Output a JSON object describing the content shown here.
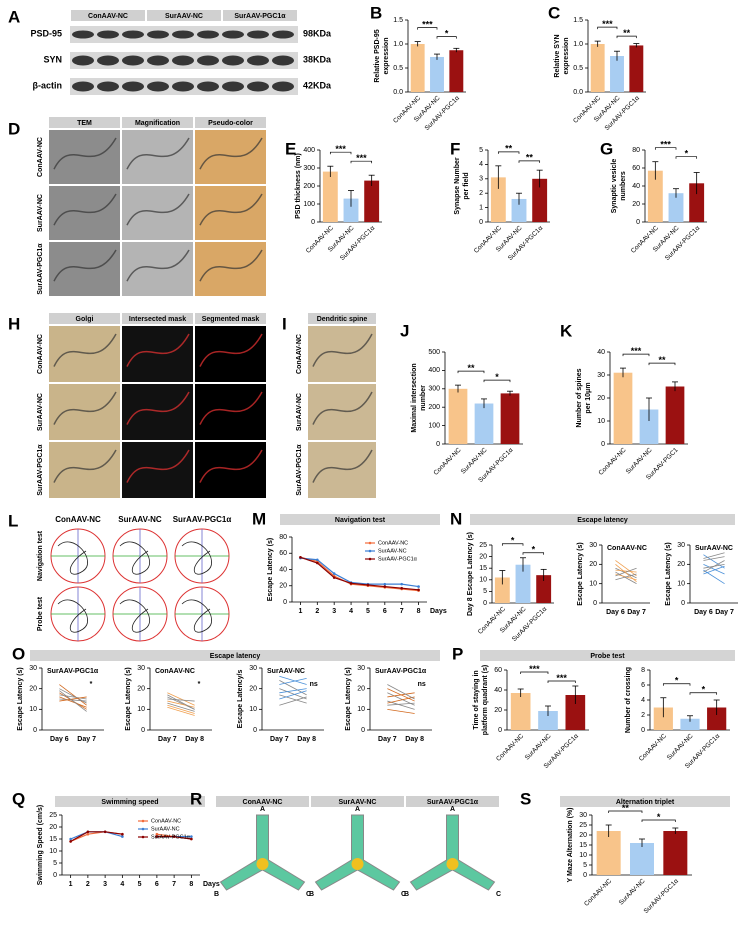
{
  "chart_data": [
    {
      "type": "bar",
      "panel": "B",
      "ylabel": [
        "Relative PSD-95",
        "expression"
      ],
      "categories": [
        "ConAAV-NC",
        "SurAAV-NC",
        "SurAAV-PGC1α"
      ],
      "values": [
        1.0,
        0.73,
        0.87
      ],
      "errors": [
        0.05,
        0.06,
        0.04
      ],
      "colors": [
        "#f8c48a",
        "#a8cdf2",
        "#9b1111"
      ],
      "ylim": [
        0,
        1.5
      ],
      "yticks": [
        {
          "value": 0,
          "label": "0.0"
        },
        0.5,
        {
          "value": 1,
          "label": "1.0"
        },
        1.5
      ],
      "annotations": [
        "***",
        "*"
      ]
    },
    {
      "type": "bar",
      "panel": "C",
      "ylabel": [
        "Relative SYN",
        "expression"
      ],
      "categories": [
        "ConAAV-NC",
        "SurAAV-NC",
        "SurAAV-PGC1α"
      ],
      "values": [
        1.0,
        0.75,
        0.97
      ],
      "errors": [
        0.06,
        0.1,
        0.04
      ],
      "colors": [
        "#f8c48a",
        "#a8cdf2",
        "#9b1111"
      ],
      "ylim": [
        0,
        1.5
      ],
      "yticks": [
        {
          "value": 0,
          "label": "0.0"
        },
        0.5,
        {
          "value": 1,
          "label": "1.0"
        },
        1.5
      ],
      "annotations": [
        "***",
        "**"
      ]
    },
    {
      "type": "bar",
      "panel": "E",
      "ylabel": [
        "PSD thickness (nm)"
      ],
      "categories": [
        "ConAAV-NC",
        "SurAAV-NC",
        "SurAAV-PGC1α"
      ],
      "values": [
        280,
        130,
        230
      ],
      "errors": [
        30,
        45,
        30
      ],
      "colors": [
        "#f8c48a",
        "#a8cdf2",
        "#9b1111"
      ],
      "ylim": [
        0,
        400
      ],
      "yticks": [
        0,
        100,
        200,
        300,
        400
      ],
      "annotations": [
        "***",
        "***"
      ]
    },
    {
      "type": "bar",
      "panel": "F",
      "ylabel": [
        "Synapse Number",
        "per field"
      ],
      "categories": [
        "ConAAV-NC",
        "SurAAV-NC",
        "SurAAV-PGC1α"
      ],
      "values": [
        3.1,
        1.6,
        3.0
      ],
      "errors": [
        0.8,
        0.4,
        0.6
      ],
      "colors": [
        "#f8c48a",
        "#a8cdf2",
        "#9b1111"
      ],
      "ylim": [
        0,
        5
      ],
      "yticks": [
        0,
        1,
        2,
        3,
        4,
        5
      ],
      "annotations": [
        "**",
        "**"
      ]
    },
    {
      "type": "bar",
      "panel": "G",
      "ylabel": [
        "Synaptic vesicle",
        "numbers"
      ],
      "categories": [
        "ConAAV-NC",
        "SurAAV-NC",
        "SurAAV-PGC1α"
      ],
      "values": [
        57,
        32,
        43
      ],
      "errors": [
        10,
        5,
        12
      ],
      "colors": [
        "#f8c48a",
        "#a8cdf2",
        "#9b1111"
      ],
      "ylim": [
        0,
        80
      ],
      "yticks": [
        0,
        20,
        40,
        60,
        80
      ],
      "annotations": [
        "***",
        "*"
      ]
    },
    {
      "type": "bar",
      "panel": "J",
      "ylabel": [
        "Maximal  intersection",
        "number"
      ],
      "categories": [
        "ConAAV-NC",
        "SurAAV-NC",
        "SurAAV-PGC1α"
      ],
      "values": [
        300,
        220,
        275
      ],
      "errors": [
        20,
        25,
        12
      ],
      "colors": [
        "#f8c48a",
        "#a8cdf2",
        "#9b1111"
      ],
      "ylim": [
        0,
        500
      ],
      "yticks": [
        0,
        100,
        200,
        300,
        400,
        500
      ],
      "annotations": [
        "**",
        "*"
      ]
    },
    {
      "type": "bar",
      "panel": "K",
      "ylabel": [
        "Number of spines",
        "per 10μm"
      ],
      "categories": [
        "ConAAV-NC",
        "SurAAV-NC",
        "SurAAV-PGC1"
      ],
      "values": [
        31,
        15,
        25
      ],
      "errors": [
        2,
        5,
        2
      ],
      "colors": [
        "#f8c48a",
        "#a8cdf2",
        "#9b1111"
      ],
      "ylim": [
        0,
        40
      ],
      "yticks": [
        0,
        10,
        20,
        30,
        40
      ],
      "annotations": [
        "***",
        "**"
      ]
    },
    {
      "type": "line",
      "panel": "M",
      "header": "Navigation test",
      "ylabel": [
        "Escape Latency (s)"
      ],
      "xlabel": "Days",
      "x": [
        1,
        2,
        3,
        4,
        5,
        6,
        7,
        8
      ],
      "xlim": [
        0.5,
        8.5
      ],
      "xticks": [
        1,
        2,
        3,
        4,
        5,
        6,
        7,
        8
      ],
      "ylim": [
        0,
        80
      ],
      "yticks": [
        0,
        20,
        40,
        60,
        80
      ],
      "series": [
        {
          "name": "ConAAV-NC",
          "color": "#f26b3a",
          "values": [
            55,
            50,
            32,
            22,
            20,
            18,
            16,
            14
          ]
        },
        {
          "name": "SurAAV-NC",
          "color": "#3b7fd4",
          "values": [
            54,
            52,
            35,
            24,
            22,
            22,
            22,
            19
          ]
        },
        {
          "name": "SurAAV-PGC1α",
          "color": "#8b0000",
          "values": [
            55,
            48,
            30,
            23,
            21,
            19,
            17,
            15
          ]
        }
      ]
    },
    {
      "type": "bar",
      "panel": "N",
      "header": "Escape latency",
      "ylabel": [
        "Day 8 Escape Latency (s)"
      ],
      "categories": [
        "ConAAV-NC",
        "SurAAV-NC",
        "SurAAV-PGC1α"
      ],
      "values": [
        11,
        16.5,
        12
      ],
      "errors": [
        3,
        3,
        2.5
      ],
      "colors": [
        "#f8c48a",
        "#a8cdf2",
        "#9b1111"
      ],
      "ylim": [
        0,
        25
      ],
      "yticks": [
        0,
        5,
        10,
        15,
        20,
        25
      ],
      "annotations": [
        "*",
        "*"
      ]
    },
    {
      "type": "paired",
      "title": "ConAAV-NC",
      "ylabel": [
        "Escape Latency (s)"
      ],
      "categories": [
        "Day 6",
        "Day 7"
      ],
      "color": "#f0a050",
      "ylim": [
        0,
        30
      ],
      "yticks": [
        0,
        10,
        20,
        30
      ],
      "pairs": [
        [
          22,
          14
        ],
        [
          18,
          13
        ],
        [
          17,
          16
        ],
        [
          16,
          10
        ],
        [
          15,
          12
        ],
        [
          14,
          18
        ],
        [
          20,
          11
        ],
        [
          12,
          15
        ]
      ]
    },
    {
      "type": "paired",
      "title": "SurAAV-NC",
      "ylabel": [
        "Escape Latency (s)"
      ],
      "categories": [
        "Day 6",
        "Day 7"
      ],
      "color": "#4a90d9",
      "ylim": [
        0,
        30
      ],
      "yticks": [
        0,
        10,
        20,
        30
      ],
      "pairs": [
        [
          25,
          18
        ],
        [
          22,
          24
        ],
        [
          20,
          15
        ],
        [
          18,
          20
        ],
        [
          17,
          10
        ],
        [
          16,
          22
        ],
        [
          15,
          19
        ],
        [
          23,
          26
        ]
      ]
    },
    {
      "type": "paired",
      "panel": "O",
      "header": "Escape latency",
      "title": "SurAAV-PGC1α",
      "note": "*",
      "ylabel": [
        "Escape Latency (s)"
      ],
      "categories": [
        "Day 6",
        "Day 7"
      ],
      "color": "#d2691e",
      "ylim": [
        0,
        30
      ],
      "yticks": [
        0,
        10,
        20,
        30
      ],
      "pairs": [
        [
          22,
          12
        ],
        [
          20,
          13
        ],
        [
          18,
          10
        ],
        [
          17,
          15
        ],
        [
          16,
          11
        ],
        [
          15,
          14
        ],
        [
          14,
          16
        ],
        [
          19,
          9
        ]
      ]
    },
    {
      "type": "paired",
      "title": "ConAAV-NC",
      "note": "*",
      "ylabel": [
        "Escape Latency (s)"
      ],
      "categories": [
        "Day 7",
        "Day 8"
      ],
      "color": "#f0a050",
      "ylim": [
        0,
        30
      ],
      "yticks": [
        0,
        10,
        20,
        30
      ],
      "pairs": [
        [
          18,
          12
        ],
        [
          16,
          10
        ],
        [
          14,
          11
        ],
        [
          13,
          9
        ],
        [
          12,
          8
        ],
        [
          15,
          14
        ],
        [
          11,
          7
        ],
        [
          17,
          10
        ]
      ]
    },
    {
      "type": "paired",
      "title": "SurAAV-NC",
      "note": "ns",
      "ylabel": [
        "Escape Latency/s"
      ],
      "categories": [
        "Day 7",
        "Day 8"
      ],
      "color": "#4a90d9",
      "ylim": [
        0,
        30
      ],
      "yticks": [
        0,
        10,
        20,
        30
      ],
      "pairs": [
        [
          26,
          22
        ],
        [
          24,
          17
        ],
        [
          22,
          25
        ],
        [
          20,
          15
        ],
        [
          18,
          20
        ],
        [
          17,
          13
        ],
        [
          15,
          19
        ],
        [
          12,
          16
        ]
      ]
    },
    {
      "type": "paired",
      "title": "SurAAV-PGC1α",
      "note": "ns",
      "ylabel": [
        "Escape Latency (s)"
      ],
      "categories": [
        "Day 7",
        "Day 8"
      ],
      "color": "#d2691e",
      "ylim": [
        0,
        30
      ],
      "yticks": [
        0,
        10,
        20,
        30
      ],
      "pairs": [
        [
          20,
          14
        ],
        [
          18,
          12
        ],
        [
          16,
          18
        ],
        [
          14,
          10
        ],
        [
          13,
          16
        ],
        [
          12,
          13
        ],
        [
          10,
          8
        ],
        [
          22,
          15
        ]
      ]
    },
    {
      "type": "bar",
      "panel": "P",
      "header": "Probe test",
      "ylabel": [
        "Time of staying in",
        "platform quadrant (s)"
      ],
      "categories": [
        "ConAAV-NC",
        "SurAAV-NC",
        "SurAAV-PGC1α"
      ],
      "values": [
        37,
        19,
        35
      ],
      "errors": [
        4,
        5,
        9
      ],
      "colors": [
        "#f8c48a",
        "#a8cdf2",
        "#9b1111"
      ],
      "ylim": [
        0,
        60
      ],
      "yticks": [
        0,
        20,
        40,
        60
      ],
      "annotations": [
        "***",
        "***"
      ]
    },
    {
      "type": "bar",
      "ylabel": [
        "Number of crossing"
      ],
      "categories": [
        "ConAAV-NC",
        "SurAAV-NC",
        "SurAAV-PGC1α"
      ],
      "values": [
        3,
        1.5,
        3
      ],
      "errors": [
        1.3,
        0.4,
        1
      ],
      "colors": [
        "#f8c48a",
        "#a8cdf2",
        "#9b1111"
      ],
      "ylim": [
        0,
        8
      ],
      "yticks": [
        0,
        2,
        4,
        6,
        8
      ],
      "annotations": [
        "*",
        "*"
      ]
    },
    {
      "type": "line",
      "panel": "Q",
      "header": "Swimming speed",
      "ylabel": [
        "Swimming Speed (cm/s)"
      ],
      "xlabel": "Days",
      "x": [
        1,
        2,
        3,
        4,
        5,
        6,
        7,
        8
      ],
      "xlim": [
        0.5,
        8.5
      ],
      "xticks": [
        1,
        2,
        3,
        4,
        5,
        6,
        7,
        8
      ],
      "ylim": [
        0,
        25
      ],
      "yticks": [
        0,
        5,
        10,
        15,
        20,
        25
      ],
      "series": [
        {
          "name": "ConAAV-NC",
          "color": "#f26b3a",
          "values": [
            14,
            17,
            18,
            17,
            null,
            17,
            16,
            15
          ]
        },
        {
          "name": "SurAAV-NC",
          "color": "#3b7fd4",
          "values": [
            15,
            18,
            18,
            16,
            null,
            16,
            16,
            16
          ]
        },
        {
          "name": "SurAAV-PGC1α",
          "color": "#8b0000",
          "values": [
            14,
            18,
            18,
            17,
            null,
            16,
            16,
            15
          ]
        }
      ]
    },
    {
      "type": "bar",
      "panel": "S",
      "header": "Alternation triplet",
      "ylabel": [
        "Y Maze Alternation (%)"
      ],
      "categories": [
        "ConAAV-NC",
        "SurAAV-NC",
        "SurAAV-PGC1α"
      ],
      "values": [
        22,
        16,
        22
      ],
      "errors": [
        3,
        2,
        1.5
      ],
      "colors": [
        "#f8c48a",
        "#a8cdf2",
        "#9b1111"
      ],
      "ylim": [
        0,
        30
      ],
      "yticks": [
        0,
        5,
        10,
        15,
        20,
        25,
        30
      ],
      "annotations": [
        "**",
        "*"
      ]
    }
  ],
  "image_panels": [
    {
      "panel": "A",
      "columns": [
        "ConAAV-NC",
        "SurAAV-NC",
        "SurAAV-PGC1α"
      ],
      "rows": [
        "PSD-95",
        "SYN",
        "β-actin"
      ],
      "sizes": [
        "98KDa",
        "38KDa",
        "42KDa"
      ]
    },
    {
      "panel": "D",
      "columns": [
        "TEM",
        "Magnification",
        "Pseudo-color"
      ],
      "rows": [
        "ConAAV-NC",
        "SurAAV-NC",
        "SurAAV-PGC1α"
      ]
    },
    {
      "panel": "H",
      "columns": [
        "Golgi",
        "Intersected mask",
        "Segmented mask"
      ],
      "rows": [
        "ConAAV-NC",
        "SurAAV-NC",
        "SurAAV-PGC1α"
      ]
    },
    {
      "panel": "I",
      "columns": [
        "Dendritic spine"
      ],
      "rows": [
        "ConAAV-NC",
        "SurAAV-NC",
        "SurAAV-PGC1α"
      ]
    },
    {
      "panel": "L",
      "columns": [
        "ConAAV-NC",
        "SurAAV-NC",
        "SurAAV-PGC1α"
      ],
      "rows": [
        "Navigation test",
        "Probe test"
      ]
    },
    {
      "panel": "R",
      "columns": [
        "ConAAV-NC",
        "SurAAV-NC",
        "SurAAV-PGC1α"
      ],
      "arms": [
        "A",
        "B",
        "C"
      ]
    }
  ]
}
